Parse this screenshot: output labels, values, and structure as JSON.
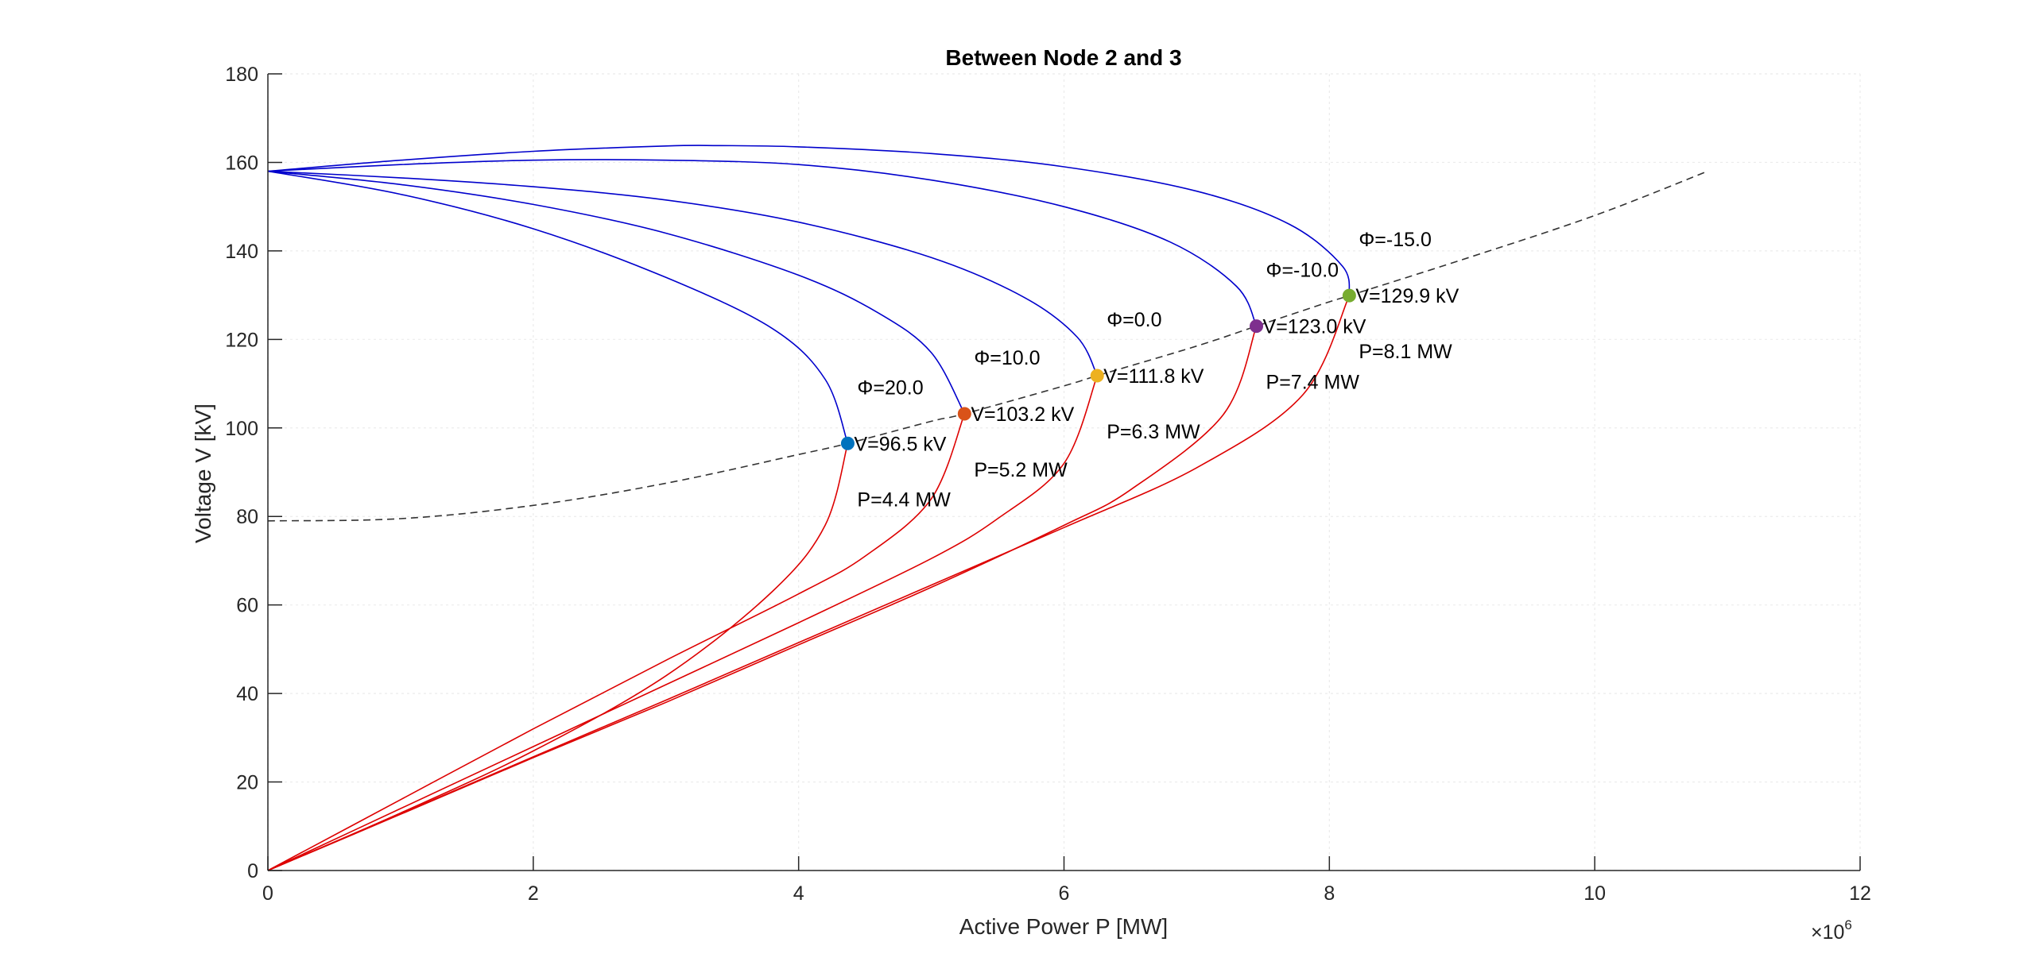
{
  "chart_data": {
    "type": "line",
    "title": "Between Node 2 and 3",
    "xlabel": "Active Power P [MW]",
    "ylabel": "Voltage V [kV]",
    "x_multiplier_label": {
      "base": "×10",
      "exponent": "6"
    },
    "xlim": [
      0,
      12000000
    ],
    "ylim": [
      0,
      180
    ],
    "x_ticks": [
      0,
      2000000,
      4000000,
      6000000,
      8000000,
      10000000,
      12000000
    ],
    "x_tick_labels": [
      "0",
      "2",
      "4",
      "6",
      "8",
      "10",
      "12"
    ],
    "y_ticks": [
      0,
      20,
      40,
      60,
      80,
      100,
      120,
      140,
      160,
      180
    ],
    "y_tick_labels": [
      "0",
      "20",
      "40",
      "60",
      "80",
      "100",
      "120",
      "140",
      "160",
      "180"
    ],
    "grid": true,
    "colors": {
      "upper_branch": "#0000cc",
      "lower_branch": "#dd0000",
      "locus": "#333333",
      "axis": "#262626",
      "grid": "#ebebeb"
    },
    "nose_curves": [
      {
        "phi": 20,
        "phi_label": "Φ=20.0",
        "v_label": "V=96.5 kV",
        "p_label": "P=4.4 MW",
        "x_upper": [
          0,
          1000000,
          2000000,
          3000000,
          3800000,
          4200000,
          4370000
        ],
        "y_upper": [
          158,
          152.8,
          145,
          134,
          122.5,
          111,
          96.5
        ],
        "x_lower": [
          4370000,
          4200000,
          3800000,
          3000000,
          2000000,
          1000000,
          0
        ],
        "y_lower": [
          96.5,
          78,
          63,
          44,
          27,
          13,
          0
        ],
        "nose_color": "#0072bd"
      },
      {
        "phi": 10,
        "phi_label": "Φ=10.0",
        "v_label": "V=103.2 kV",
        "p_label": "P=5.2 MW",
        "x_upper": [
          0,
          1000000,
          2000000,
          3000000,
          4000000,
          4600000,
          5000000,
          5250000
        ],
        "y_upper": [
          158,
          155,
          150.5,
          144,
          134.5,
          126,
          117,
          103.2
        ],
        "x_lower": [
          5250000,
          5000000,
          4500000,
          4000000,
          3000000,
          2000000,
          1000000,
          0
        ],
        "y_lower": [
          103.2,
          84,
          71,
          62.5,
          47.5,
          32,
          16,
          0
        ],
        "nose_color": "#d95319"
      },
      {
        "phi": 0,
        "phi_label": "Φ=0.0",
        "v_label": "V=111.8 kV",
        "p_label": "P=6.3 MW",
        "x_upper": [
          0,
          1000000,
          2000000,
          3000000,
          4000000,
          5000000,
          5700000,
          6100000,
          6250000
        ],
        "y_upper": [
          158,
          156.5,
          154.5,
          151.5,
          146.5,
          138.5,
          129.5,
          120.5,
          111.8
        ],
        "x_lower": [
          6250000,
          6000000,
          5500000,
          5000000,
          4000000,
          3000000,
          2000000,
          1000000,
          0
        ],
        "y_lower": [
          111.8,
          92,
          79.5,
          70.5,
          56,
          42,
          28,
          14,
          0
        ],
        "nose_color": "#edb120"
      },
      {
        "phi": -10,
        "phi_label": "Φ=-10.0",
        "v_label": "V=123.0 kV",
        "p_label": "P=7.4 MW",
        "x_upper": [
          0,
          1000000,
          2000000,
          3000000,
          4000000,
          5000000,
          6000000,
          6800000,
          7300000,
          7450000
        ],
        "y_upper": [
          158,
          159.5,
          160.5,
          160.5,
          159.5,
          156,
          150,
          142,
          132,
          123
        ],
        "x_lower": [
          7450000,
          7200000,
          6500000,
          6000000,
          5000000,
          4000000,
          3000000,
          2000000,
          1000000,
          0
        ],
        "y_lower": [
          123,
          103,
          86,
          78,
          64,
          51,
          38,
          25.5,
          12.7,
          0
        ],
        "nose_color": "#7e2f8e"
      },
      {
        "phi": -15,
        "phi_label": "Φ=-15.0",
        "v_label": "V=129.9 kV",
        "p_label": "P=8.1 MW",
        "x_upper": [
          0,
          1000000,
          2000000,
          3000000,
          3400000,
          4000000,
          5000000,
          6000000,
          7000000,
          7700000,
          8100000,
          8150000
        ],
        "y_upper": [
          158,
          160.5,
          162.5,
          163.7,
          163.8,
          163.5,
          162,
          159,
          153.5,
          146,
          136.5,
          129.9
        ],
        "x_lower": [
          8150000,
          7800000,
          7000000,
          6000000,
          5000000,
          4000000,
          3000000,
          2000000,
          1000000,
          0
        ],
        "y_lower": [
          129.9,
          107.5,
          91,
          77.5,
          64.5,
          51.5,
          38.5,
          25.7,
          12.8,
          0
        ],
        "nose_color": "#77ac30"
      }
    ],
    "max_power_locus": {
      "x": [
        0,
        1000000,
        2000000,
        3000000,
        4000000,
        4370000,
        5000000,
        5250000,
        6000000,
        6250000,
        7000000,
        7450000,
        8000000,
        8150000,
        9000000,
        10000000,
        10850000
      ],
      "y": [
        79,
        79.5,
        82.5,
        87.5,
        94,
        96.5,
        101.5,
        103.2,
        109.5,
        111.8,
        118.5,
        123,
        128.5,
        129.9,
        138,
        148,
        158
      ]
    },
    "nose_points": [
      {
        "x": 4370000,
        "y": 96.5
      },
      {
        "x": 5250000,
        "y": 103.2
      },
      {
        "x": 6250000,
        "y": 111.8
      },
      {
        "x": 7450000,
        "y": 123.0
      },
      {
        "x": 8150000,
        "y": 129.9
      }
    ]
  }
}
